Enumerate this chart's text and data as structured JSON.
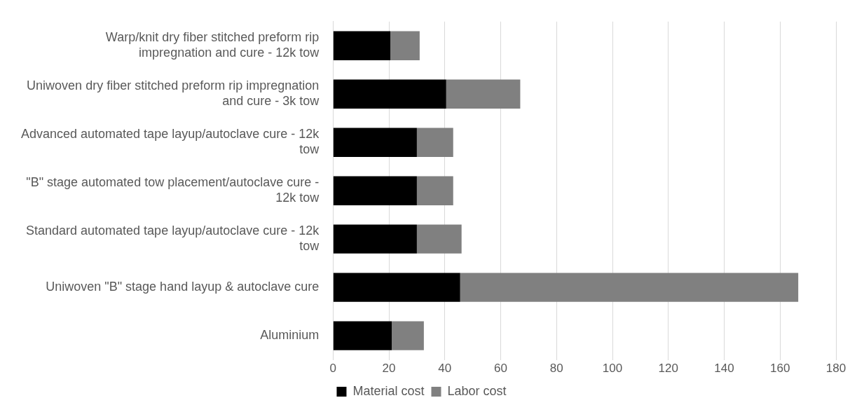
{
  "chart_data": {
    "type": "bar",
    "orientation": "horizontal",
    "stacked": true,
    "categories": [
      "Warp/knit dry fiber stitched preform rip impregnation and cure - 12k tow",
      "Uniwoven dry fiber stitched preform rip impregnation and cure - 3k tow",
      "Advanced automated tape layup/autoclave cure - 12k tow",
      "\"B\" stage automated tow placement/autoclave cure - 12k tow",
      "Standard automated tape layup/autoclave cure - 12k tow",
      "Uniwoven \"B\" stage hand layup & autoclave cure",
      "Aluminium"
    ],
    "series": [
      {
        "name": "Material cost",
        "color": "#000000",
        "values": [
          20.5,
          40.5,
          30,
          30,
          30,
          45.5,
          21
        ]
      },
      {
        "name": "Labor cost",
        "color": "#808080",
        "values": [
          10.5,
          26.5,
          13,
          13,
          16,
          121,
          11.5
        ]
      }
    ],
    "xlim": [
      0,
      180
    ],
    "xticks": [
      0,
      20,
      40,
      60,
      80,
      100,
      120,
      140,
      160,
      180
    ],
    "grid": "x",
    "legend": "bottom"
  }
}
